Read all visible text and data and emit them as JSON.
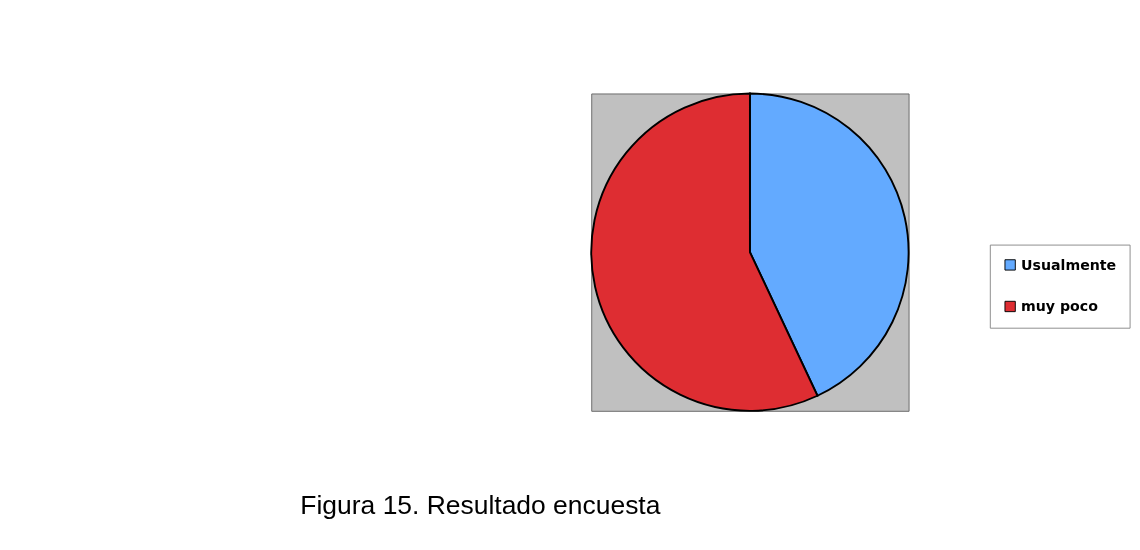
{
  "chart_data": {
    "type": "pie",
    "categories": [
      "Usualmente",
      "muy poco"
    ],
    "values": [
      43,
      57
    ],
    "colors": [
      "#63aaff",
      "#de2d32"
    ],
    "legend": "right",
    "annotations": [
      "Figura 15. Resultado encuesta"
    ]
  }
}
